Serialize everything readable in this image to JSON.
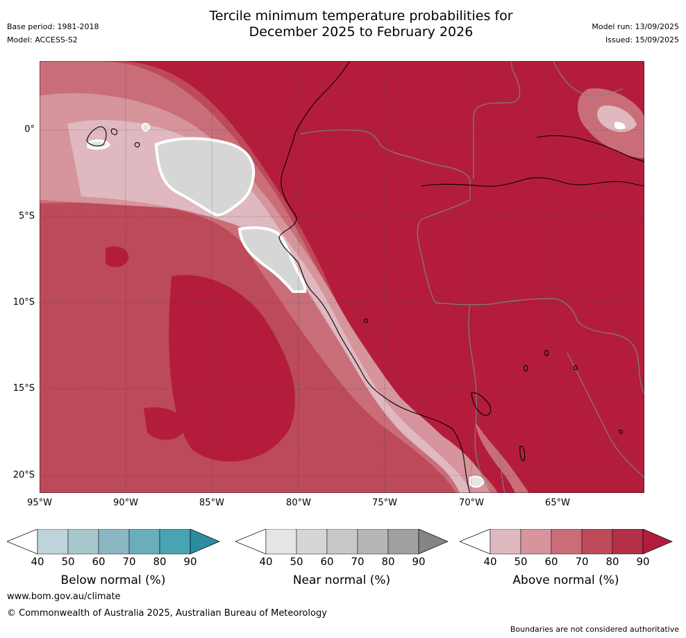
{
  "header": {
    "base_period": "Base period: 1981-2018",
    "model": "Model: ACCESS-S2",
    "title_line1": "Tercile minimum temperature probabilities for",
    "title_line2": "December 2025 to February 2026",
    "model_run": "Model run: 13/09/2025",
    "issued": "Issued: 15/09/2025"
  },
  "map": {
    "lat_labels": [
      "0°",
      "5°S",
      "10°S",
      "15°S",
      "20°S"
    ],
    "lon_labels": [
      "95°W",
      "90°W",
      "85°W",
      "80°W",
      "75°W",
      "70°W",
      "65°W"
    ],
    "colors": {
      "above_40": "#e0b8bf",
      "above_50": "#d6949c",
      "above_60": "#c96e79",
      "above_70": "#bd4a58",
      "above_80": "#b31d3b",
      "near_50": "#d6d6d6",
      "near_40": "#e5e5e5"
    }
  },
  "colorbars": [
    {
      "label": "Below normal (%)",
      "ticks": [
        "40",
        "50",
        "60",
        "70",
        "80",
        "90"
      ],
      "colors": [
        "#ffffff",
        "#bfd4da",
        "#a7c7cd",
        "#8ab7c2",
        "#6aaebb",
        "#48a3b2",
        "#2e8ca1"
      ]
    },
    {
      "label": "Near normal (%)",
      "ticks": [
        "40",
        "50",
        "60",
        "70",
        "80",
        "90"
      ],
      "colors": [
        "#ffffff",
        "#e5e5e5",
        "#d6d6d6",
        "#c8c8c8",
        "#b6b6b6",
        "#a0a0a0",
        "#858585"
      ]
    },
    {
      "label": "Above normal (%)",
      "ticks": [
        "40",
        "50",
        "60",
        "70",
        "80",
        "90"
      ],
      "colors": [
        "#ffffff",
        "#e0b8bf",
        "#d6949c",
        "#c96e79",
        "#bd4a58",
        "#b42f47",
        "#b31d3b"
      ]
    }
  ],
  "footer": {
    "url": "www.bom.gov.au/climate",
    "copyright": "© Commonwealth of Australia 2025, Australian Bureau of Meteorology",
    "disclaimer": "Boundaries are not considered authoritative"
  }
}
